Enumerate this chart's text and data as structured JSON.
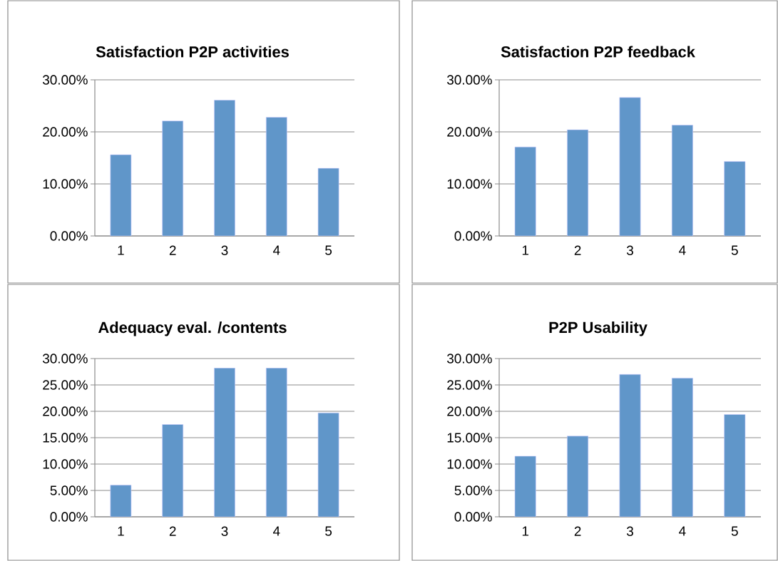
{
  "chart_data": [
    {
      "type": "bar",
      "title": "Satisfaction P2P activities",
      "categories": [
        "1",
        "2",
        "3",
        "4",
        "5"
      ],
      "values": [
        15.6,
        22.1,
        26.1,
        22.8,
        13.0
      ],
      "color": "#6096c9",
      "ylim": [
        0,
        30
      ],
      "yticks": [
        {
          "value": 0,
          "label": "0.00%"
        },
        {
          "value": 10,
          "label": "10.00%"
        },
        {
          "value": 20,
          "label": "20.00%"
        },
        {
          "value": 30,
          "label": "30.00%"
        }
      ],
      "grid": "y"
    },
    {
      "type": "bar",
      "title": "Satisfaction P2P feedback",
      "categories": [
        "1",
        "2",
        "3",
        "4",
        "5"
      ],
      "values": [
        17.1,
        20.4,
        26.6,
        21.3,
        14.3
      ],
      "color": "#6096c9",
      "ylim": [
        0,
        30
      ],
      "yticks": [
        {
          "value": 0,
          "label": "0.00%"
        },
        {
          "value": 10,
          "label": "10.00%"
        },
        {
          "value": 20,
          "label": "20.00%"
        },
        {
          "value": 30,
          "label": "30.00%"
        }
      ],
      "grid": "y"
    },
    {
      "type": "bar",
      "title": "Adequacy eval. /contents",
      "categories": [
        "1",
        "2",
        "3",
        "4",
        "5"
      ],
      "values": [
        6.0,
        17.5,
        28.2,
        28.2,
        19.7
      ],
      "color": "#6096c9",
      "ylim": [
        0,
        30
      ],
      "yticks": [
        {
          "value": 0,
          "label": "0.00%"
        },
        {
          "value": 5,
          "label": "5.00%"
        },
        {
          "value": 10,
          "label": "10.00%"
        },
        {
          "value": 15,
          "label": "15.00%"
        },
        {
          "value": 20,
          "label": "20.00%"
        },
        {
          "value": 25,
          "label": "25.00%"
        },
        {
          "value": 30,
          "label": "30.00%"
        }
      ],
      "grid": "y"
    },
    {
      "type": "bar",
      "title": "P2P Usability",
      "categories": [
        "1",
        "2",
        "3",
        "4",
        "5"
      ],
      "values": [
        11.5,
        15.3,
        27.0,
        26.3,
        19.4
      ],
      "color": "#6096c9",
      "ylim": [
        0,
        30
      ],
      "yticks": [
        {
          "value": 0,
          "label": "0.00%"
        },
        {
          "value": 5,
          "label": "5.00%"
        },
        {
          "value": 10,
          "label": "10.00%"
        },
        {
          "value": 15,
          "label": "15.00%"
        },
        {
          "value": 20,
          "label": "20.00%"
        },
        {
          "value": 25,
          "label": "25.00%"
        },
        {
          "value": 30,
          "label": "30.00%"
        }
      ],
      "grid": "y"
    }
  ]
}
